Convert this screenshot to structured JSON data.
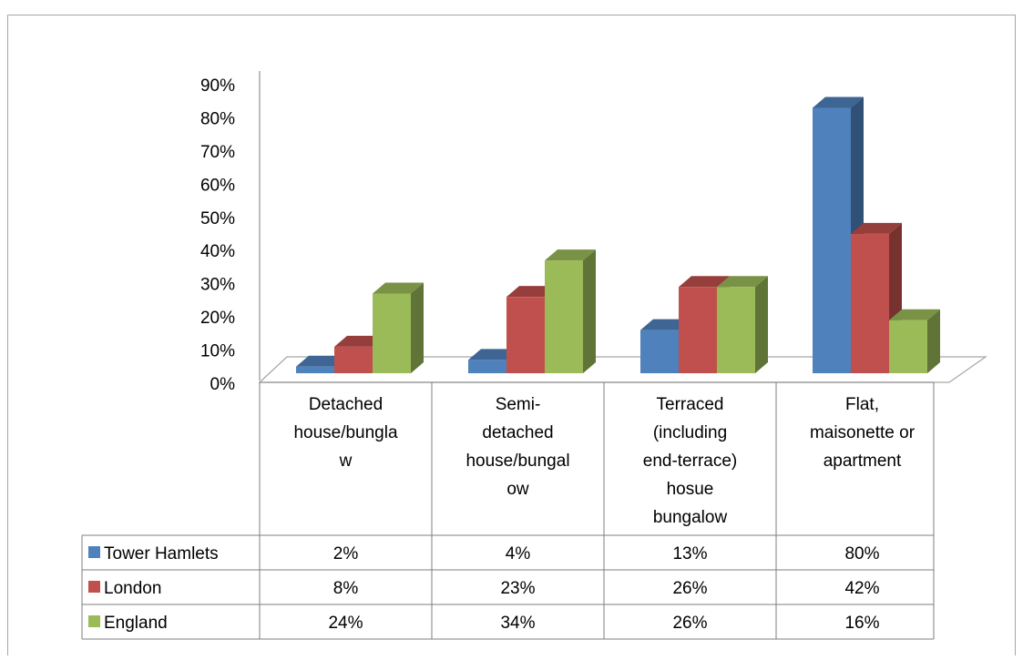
{
  "chart_data": {
    "type": "bar",
    "title": "",
    "xlabel": "",
    "ylabel": "",
    "ylim": [
      0,
      0.9
    ],
    "y_ticks": [
      "0%",
      "10%",
      "20%",
      "30%",
      "40%",
      "50%",
      "60%",
      "70%",
      "80%",
      "90%"
    ],
    "grid": false,
    "legend": "data-table",
    "style": "3d-clustered-column",
    "categories": [
      [
        "Detached",
        "house/bungla",
        "w"
      ],
      [
        "Semi-",
        "detached",
        "house/bungal",
        "ow"
      ],
      [
        "Terraced",
        "(including",
        "end-terrace)",
        "hosue",
        "bungalow"
      ],
      [
        "Flat,",
        "maisonette or",
        "apartment"
      ]
    ],
    "series": [
      {
        "name": "Tower Hamlets",
        "color": "#4F81BD",
        "values": [
          0.02,
          0.04,
          0.13,
          0.8
        ],
        "labels": [
          "2%",
          "4%",
          "13%",
          "80%"
        ]
      },
      {
        "name": "London",
        "color": "#C0504D",
        "values": [
          0.08,
          0.23,
          0.26,
          0.42
        ],
        "labels": [
          "8%",
          "23%",
          "26%",
          "42%"
        ]
      },
      {
        "name": "England",
        "color": "#9BBB59",
        "values": [
          0.24,
          0.34,
          0.26,
          0.16
        ],
        "labels": [
          "24%",
          "34%",
          "26%",
          "16%"
        ]
      }
    ]
  }
}
